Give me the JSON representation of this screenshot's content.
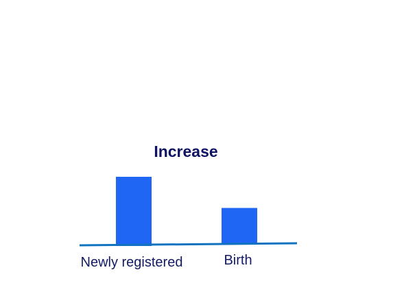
{
  "chart_data": {
    "type": "bar",
    "title": "Increase",
    "categories": [
      "Newly registered",
      "Birth"
    ],
    "values": [
      100,
      52
    ],
    "xlabel": "",
    "ylabel": "",
    "ylim": [
      0,
      100
    ],
    "grid": false,
    "legend": "none"
  },
  "colors": {
    "bar": "#1f66f5",
    "axis": "#1173bf",
    "title": "#0e1361",
    "label": "#131a63"
  }
}
